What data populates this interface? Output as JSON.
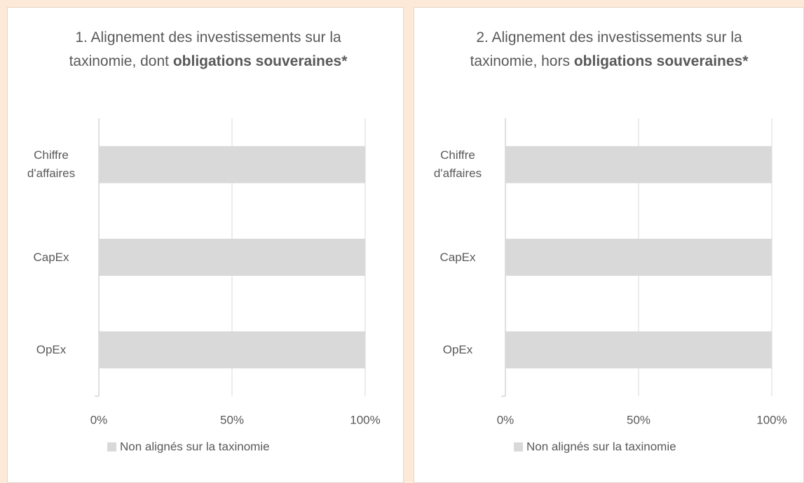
{
  "chart_data": [
    {
      "type": "bar",
      "orientation": "horizontal",
      "title": [
        "1. Alignement des investissements sur la taxinomie, dont",
        "obligations souveraines*"
      ],
      "categories": [
        "Chiffre d'affaires",
        "CapEx",
        "OpEx"
      ],
      "series": [
        {
          "name": "Non alignés sur la taxinomie",
          "color": "#d9d9d9",
          "values": [
            100,
            100,
            100
          ]
        }
      ],
      "xlim": [
        0,
        100
      ],
      "xticks": [
        {
          "value": 0,
          "label": "0%"
        },
        {
          "value": 50,
          "label": "50%"
        },
        {
          "value": 100,
          "label": "100%"
        }
      ],
      "grid": true,
      "legend": "bottom"
    },
    {
      "type": "bar",
      "orientation": "horizontal",
      "title": [
        "2. Alignement des investissements sur la taxinomie, hors",
        "obligations souveraines*"
      ],
      "categories": [
        "Chiffre d'affaires",
        "CapEx",
        "OpEx"
      ],
      "series": [
        {
          "name": "Non alignés sur la taxinomie",
          "color": "#d9d9d9",
          "values": [
            100,
            100,
            100
          ]
        }
      ],
      "xlim": [
        0,
        100
      ],
      "xticks": [
        {
          "value": 0,
          "label": "0%"
        },
        {
          "value": 50,
          "label": "50%"
        },
        {
          "value": 100,
          "label": "100%"
        }
      ],
      "grid": true,
      "legend": "bottom"
    }
  ]
}
